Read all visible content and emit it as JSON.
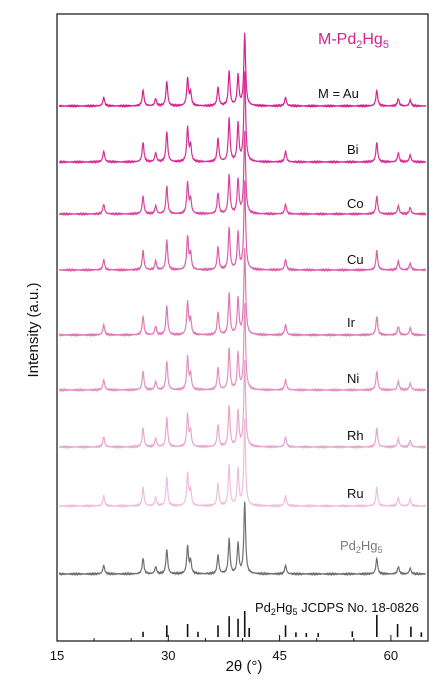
{
  "chart_data": {
    "type": "line",
    "title": "",
    "xlabel": "2θ (°)",
    "ylabel": "Intensity (a.u.)",
    "xlim": [
      15,
      65
    ],
    "x_ticks": [
      15,
      30,
      45,
      60
    ],
    "x_tick_labels": [
      "15",
      "30",
      "45",
      "60"
    ],
    "annotations": {
      "main": "M-Pd2Hg5",
      "reference_series_label": "Pd2Hg5",
      "reference_pattern_label": "Pd2Hg5 JCDPS No. 18-0826"
    },
    "series": [
      {
        "name": "M = Au",
        "color": "#d6228f"
      },
      {
        "name": "Bi",
        "color": "#d42f95"
      },
      {
        "name": "Co",
        "color": "#d8479f"
      },
      {
        "name": "Cu",
        "color": "#db5ea9"
      },
      {
        "name": "Ir",
        "color": "#df79b6"
      },
      {
        "name": "Ni",
        "color": "#e391c2"
      },
      {
        "name": "Rh",
        "color": "#e8a8cd"
      },
      {
        "name": "Ru",
        "color": "#edbfdb"
      },
      {
        "name": "Pd2Hg5",
        "color": "#6f6f6f"
      }
    ],
    "peaks": [
      {
        "x": 21.3,
        "h": 0.12
      },
      {
        "x": 26.6,
        "h": 0.22
      },
      {
        "x": 28.3,
        "h": 0.1
      },
      {
        "x": 29.8,
        "h": 0.34
      },
      {
        "x": 32.6,
        "h": 0.38
      },
      {
        "x": 33.0,
        "h": 0.18
      },
      {
        "x": 36.7,
        "h": 0.26
      },
      {
        "x": 38.2,
        "h": 0.48
      },
      {
        "x": 39.4,
        "h": 0.42
      },
      {
        "x": 40.3,
        "h": 1.0
      },
      {
        "x": 45.8,
        "h": 0.12
      },
      {
        "x": 58.1,
        "h": 0.22
      },
      {
        "x": 61.0,
        "h": 0.1
      },
      {
        "x": 62.6,
        "h": 0.08
      }
    ],
    "reference_sticks": [
      {
        "x": 26.6,
        "h": 0.2
      },
      {
        "x": 29.8,
        "h": 0.45
      },
      {
        "x": 32.6,
        "h": 0.5
      },
      {
        "x": 34.0,
        "h": 0.2
      },
      {
        "x": 36.7,
        "h": 0.45
      },
      {
        "x": 38.2,
        "h": 0.8
      },
      {
        "x": 39.4,
        "h": 0.7
      },
      {
        "x": 40.3,
        "h": 1.0
      },
      {
        "x": 40.9,
        "h": 0.35
      },
      {
        "x": 45.8,
        "h": 0.45
      },
      {
        "x": 47.2,
        "h": 0.18
      },
      {
        "x": 48.6,
        "h": 0.15
      },
      {
        "x": 50.2,
        "h": 0.15
      },
      {
        "x": 54.8,
        "h": 0.22
      },
      {
        "x": 58.1,
        "h": 0.85
      },
      {
        "x": 60.9,
        "h": 0.5
      },
      {
        "x": 62.7,
        "h": 0.4
      },
      {
        "x": 64.1,
        "h": 0.18
      }
    ]
  }
}
